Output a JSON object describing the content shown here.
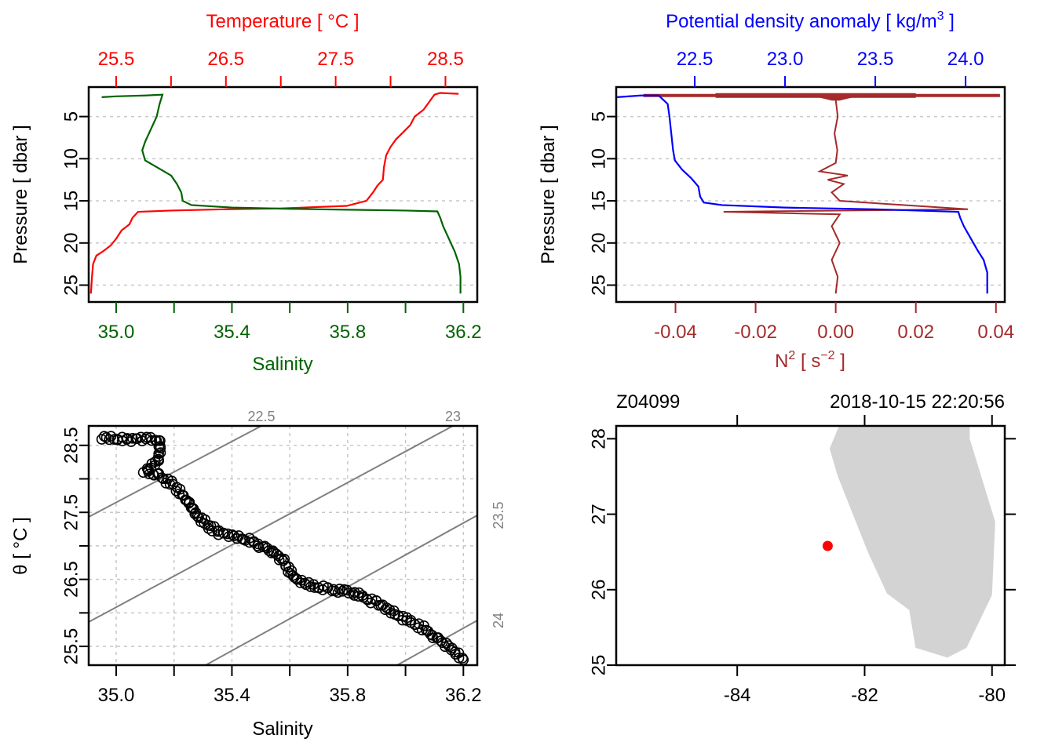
{
  "colors": {
    "temperature": "#ff0000",
    "salinity": "#006400",
    "density": "#0000ff",
    "n2": "#a52a2a",
    "isopycnal": "#808080",
    "grid": "#c8c8c8",
    "land": "#d3d3d3",
    "station": "#ff0000"
  },
  "chart_data": [
    {
      "id": "ts-profile",
      "type": "line",
      "title": "",
      "top_axis": {
        "label": "Temperature [ °C ]",
        "ticks": [
          25.5,
          26.5,
          27.5,
          28.5
        ],
        "minor_ticks": [
          26.0,
          27.0,
          28.0
        ],
        "range": [
          25.25,
          28.79
        ]
      },
      "bottom_axis": {
        "label": "Salinity",
        "ticks": [
          35.0,
          35.4,
          35.8,
          36.2
        ],
        "minor_ticks": [
          35.2,
          35.6,
          36.0
        ],
        "range": [
          34.905,
          36.248
        ]
      },
      "left_axis": {
        "label": "Pressure [ dbar ]",
        "ticks": [
          5,
          10,
          15,
          20,
          25
        ],
        "range": [
          27.0,
          1.5
        ],
        "reversed": true
      },
      "grid": "horizontal dotted",
      "series": [
        {
          "name": "Temperature",
          "axis": "top",
          "points": [
            [
              28.62,
              2.3
            ],
            [
              28.45,
              2.2
            ],
            [
              28.4,
              2.4
            ],
            [
              28.35,
              3.3
            ],
            [
              28.3,
              4.2
            ],
            [
              28.22,
              5.0
            ],
            [
              28.18,
              6.0
            ],
            [
              28.12,
              6.8
            ],
            [
              28.05,
              7.7
            ],
            [
              28.0,
              8.6
            ],
            [
              27.96,
              9.6
            ],
            [
              27.94,
              11.0
            ],
            [
              27.93,
              12.5
            ],
            [
              27.88,
              13.2
            ],
            [
              27.84,
              14.0
            ],
            [
              27.78,
              15.0
            ],
            [
              27.6,
              15.6
            ],
            [
              27.0,
              15.9
            ],
            [
              26.5,
              16.0
            ],
            [
              26.0,
              16.15
            ],
            [
              25.7,
              16.3
            ],
            [
              25.65,
              17.0
            ],
            [
              25.62,
              17.8
            ],
            [
              25.55,
              18.5
            ],
            [
              25.5,
              19.5
            ],
            [
              25.45,
              20.3
            ],
            [
              25.38,
              21.0
            ],
            [
              25.32,
              21.5
            ],
            [
              25.29,
              22.5
            ],
            [
              25.28,
              24.0
            ],
            [
              25.27,
              26.0
            ]
          ]
        },
        {
          "name": "Salinity",
          "axis": "bottom",
          "points": [
            [
              34.95,
              2.7
            ],
            [
              35.0,
              2.6
            ],
            [
              35.1,
              2.5
            ],
            [
              35.16,
              2.4
            ],
            [
              35.15,
              3.5
            ],
            [
              35.14,
              5.0
            ],
            [
              35.12,
              6.5
            ],
            [
              35.1,
              8.0
            ],
            [
              35.09,
              9.0
            ],
            [
              35.1,
              10.2
            ],
            [
              35.15,
              11.2
            ],
            [
              35.19,
              12.0
            ],
            [
              35.21,
              13.0
            ],
            [
              35.225,
              14.0
            ],
            [
              35.23,
              15.0
            ],
            [
              35.26,
              15.5
            ],
            [
              35.4,
              15.8
            ],
            [
              35.6,
              15.95
            ],
            [
              35.8,
              16.05
            ],
            [
              36.0,
              16.15
            ],
            [
              36.11,
              16.25
            ],
            [
              36.12,
              17.0
            ],
            [
              36.13,
              18.0
            ],
            [
              36.15,
              19.5
            ],
            [
              36.17,
              21.0
            ],
            [
              36.185,
              22.5
            ],
            [
              36.19,
              24.0
            ],
            [
              36.19,
              26.0
            ]
          ]
        }
      ]
    },
    {
      "id": "density-n2-profile",
      "type": "line",
      "top_axis": {
        "label": "Potential density anomaly [ kg/m³ ]",
        "ticks": [
          22.5,
          23.0,
          23.5,
          24.0
        ],
        "range": [
          22.065,
          24.217
        ]
      },
      "bottom_axis": {
        "label": "N² [ s⁻² ]",
        "ticks": [
          -0.04,
          -0.02,
          0.0,
          0.02,
          0.04
        ],
        "range": [
          -0.0548,
          0.0422
        ]
      },
      "left_axis": {
        "label": "Pressure [ dbar ]",
        "ticks": [
          5,
          10,
          15,
          20,
          25
        ],
        "range": [
          27.0,
          1.5
        ],
        "reversed": true
      },
      "grid": "horizontal dotted",
      "series": [
        {
          "name": "Potential density anomaly",
          "axis": "top",
          "points": [
            [
              22.07,
              2.7
            ],
            [
              22.2,
              2.5
            ],
            [
              22.3,
              2.5
            ],
            [
              22.35,
              3.5
            ],
            [
              22.36,
              5.0
            ],
            [
              22.37,
              7.0
            ],
            [
              22.38,
              9.0
            ],
            [
              22.39,
              10.2
            ],
            [
              22.43,
              11.3
            ],
            [
              22.48,
              12.3
            ],
            [
              22.52,
              13.3
            ],
            [
              22.53,
              14.5
            ],
            [
              22.55,
              15.2
            ],
            [
              22.65,
              15.5
            ],
            [
              23.0,
              15.8
            ],
            [
              23.5,
              16.0
            ],
            [
              23.8,
              16.2
            ],
            [
              23.96,
              16.3
            ],
            [
              23.97,
              17.0
            ],
            [
              23.99,
              18.0
            ],
            [
              24.03,
              19.5
            ],
            [
              24.07,
              21.0
            ],
            [
              24.1,
              22.0
            ],
            [
              24.12,
              23.5
            ],
            [
              24.12,
              26.0
            ]
          ]
        },
        {
          "name": "N2",
          "axis": "bottom",
          "points": [
            [
              0.0,
              3.0
            ],
            [
              0.0005,
              5.0
            ],
            [
              -0.0003,
              7.0
            ],
            [
              0.0004,
              9.0
            ],
            [
              0.0,
              10.5
            ],
            [
              -0.004,
              11.5
            ],
            [
              0.003,
              12.0
            ],
            [
              -0.002,
              12.5
            ],
            [
              0.002,
              13.0
            ],
            [
              -0.001,
              14.0
            ],
            [
              0.001,
              15.0
            ],
            [
              0.033,
              16.0
            ],
            [
              -0.028,
              16.3
            ],
            [
              0.001,
              16.6
            ],
            [
              -0.001,
              18.0
            ],
            [
              0.001,
              20.0
            ],
            [
              -0.001,
              22.0
            ],
            [
              0.0005,
              24.0
            ],
            [
              0.0,
              26.0
            ]
          ],
          "surface_spike": {
            "pressure": 2.5,
            "min": -0.048,
            "max": 0.041
          }
        }
      ]
    },
    {
      "id": "ts-diagram",
      "type": "scatter",
      "xlabel": "Salinity",
      "ylabel": "θ [ °C ]",
      "x_ticks": [
        35.0,
        35.4,
        35.8,
        36.2
      ],
      "x_minor_ticks": [
        35.2,
        35.6,
        36.0
      ],
      "y_ticks": [
        25.5,
        26.5,
        27.5,
        28.5
      ],
      "y_minor_ticks": [
        26.0,
        27.0,
        28.0
      ],
      "xlim": [
        34.905,
        36.248
      ],
      "ylim": [
        25.22,
        28.79
      ],
      "grid": "dotted both",
      "isopycnals": [
        {
          "label": "22.5",
          "label_side": "top"
        },
        {
          "label": "23",
          "label_side": "top"
        },
        {
          "label": "23.5",
          "label_side": "right"
        },
        {
          "label": "24",
          "label_side": "right"
        }
      ],
      "points": [
        [
          34.95,
          28.62
        ],
        [
          35.0,
          28.6
        ],
        [
          35.05,
          28.58
        ],
        [
          35.1,
          28.6
        ],
        [
          35.15,
          28.58
        ],
        [
          35.15,
          28.3
        ],
        [
          35.1,
          28.1
        ],
        [
          35.15,
          28.05
        ],
        [
          35.2,
          27.9
        ],
        [
          35.25,
          27.65
        ],
        [
          35.28,
          27.45
        ],
        [
          35.32,
          27.3
        ],
        [
          35.35,
          27.2
        ],
        [
          35.4,
          27.15
        ],
        [
          35.45,
          27.1
        ],
        [
          35.5,
          27.0
        ],
        [
          35.55,
          26.9
        ],
        [
          35.58,
          26.75
        ],
        [
          35.62,
          26.5
        ],
        [
          35.68,
          26.4
        ],
        [
          35.75,
          26.35
        ],
        [
          35.82,
          26.3
        ],
        [
          35.9,
          26.15
        ],
        [
          35.98,
          25.95
        ],
        [
          36.05,
          25.8
        ],
        [
          36.1,
          25.65
        ],
        [
          36.15,
          25.5
        ],
        [
          36.2,
          25.3
        ]
      ]
    },
    {
      "id": "station-map",
      "type": "scatter",
      "title_left": "Z04099",
      "title_right": "2018-10-15 22:20:56",
      "x_ticks": [
        -84,
        -82,
        -80
      ],
      "y_ticks": [
        25,
        26,
        27,
        28
      ],
      "xlim": [
        -85.9,
        -79.8
      ],
      "ylim": [
        25.0,
        28.17
      ],
      "station": {
        "lon": -82.58,
        "lat": 26.58
      },
      "coastline_polygon": [
        [
          -82.4,
          28.17
        ],
        [
          -82.55,
          27.87
        ],
        [
          -82.42,
          27.5
        ],
        [
          -81.95,
          26.5
        ],
        [
          -81.65,
          25.95
        ],
        [
          -81.3,
          25.73
        ],
        [
          -81.2,
          25.23
        ],
        [
          -80.7,
          25.1
        ],
        [
          -80.4,
          25.23
        ],
        [
          -80.0,
          25.93
        ],
        [
          -79.95,
          26.9
        ],
        [
          -80.35,
          28.0
        ],
        [
          -80.35,
          28.17
        ]
      ]
    }
  ],
  "panels": {
    "ts_profile": {
      "top_label": "Temperature [ °C ]",
      "bottom_label": "Salinity",
      "left_label": "Pressure [ dbar ]"
    },
    "density_profile": {
      "top_label_main": "Potential density anomaly [ kg/m",
      "top_label_sup": "3",
      "top_label_end": " ]",
      "bottom_label_main": "N",
      "bottom_label_sup1": "2",
      "bottom_label_mid": " [ s",
      "bottom_label_sup2": "−2",
      "bottom_label_end": " ]",
      "left_label": "Pressure [ dbar ]"
    },
    "ts_diagram": {
      "bottom_label": "Salinity",
      "left_label": "θ [ °C ]"
    },
    "map": {
      "station_id": "Z04099",
      "datetime": "2018-10-15 22:20:56"
    }
  }
}
